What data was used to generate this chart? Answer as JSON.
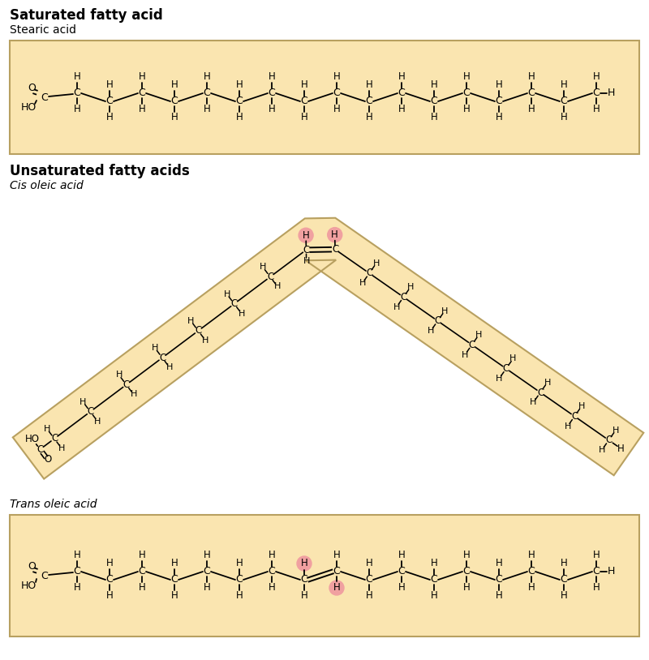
{
  "bg_color": "#FFFFFF",
  "box_color": "#FAE5B0",
  "box_edge_color": "#B8A060",
  "title1": "Saturated fatty acid",
  "subtitle1": "Stearic acid",
  "title2": "Unsaturated fatty acids",
  "subtitle2_cis": "Cis oleic acid",
  "subtitle2_trans": "Trans oleic acid",
  "highlight_color": "#F0A0A0",
  "text_color": "#000000"
}
